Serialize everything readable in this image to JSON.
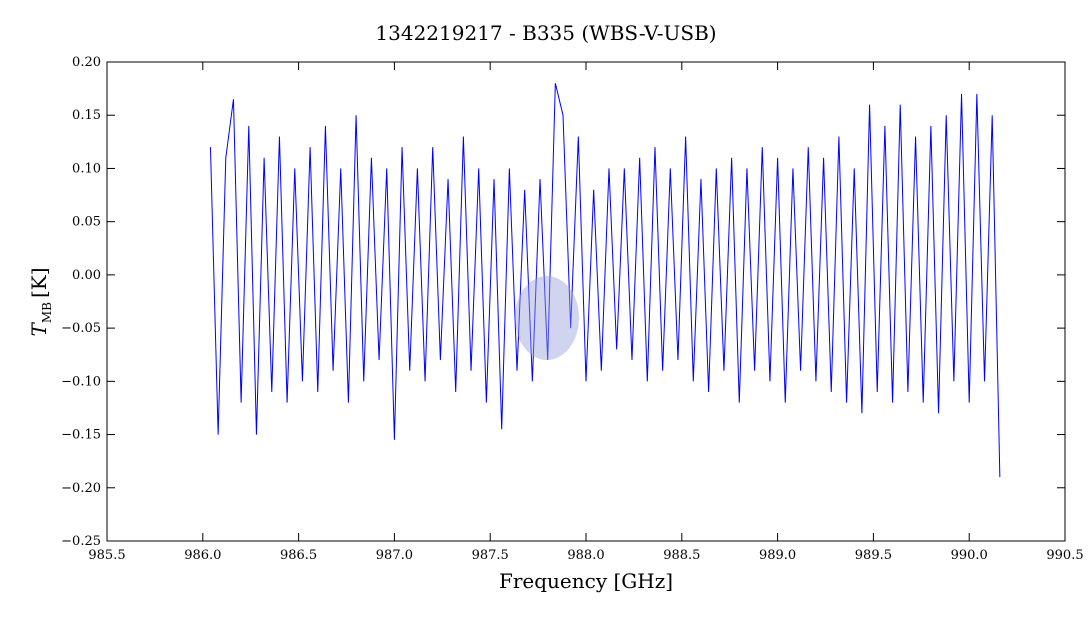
{
  "chart_data": {
    "type": "line",
    "title": "1342219217 - B335 (WBS-V-USB)",
    "xlabel": "Frequency [GHz]",
    "ylabel_symbol": "T",
    "ylabel_subscript": "MB",
    "ylabel_unit": "[K]",
    "xlim": [
      985.5,
      990.5
    ],
    "xticks": [
      985.5,
      {
        "value": 986,
        "label": "986.0"
      },
      986.5,
      {
        "value": 987,
        "label": "987.0"
      },
      987.5,
      {
        "value": 988,
        "label": "988.0"
      },
      988.5,
      {
        "value": 989,
        "label": "989.0"
      },
      989.5,
      {
        "value": 990,
        "label": "990.0"
      },
      990.5
    ],
    "ylim": [
      -0.25,
      0.2
    ],
    "yticks": [
      {
        "value": -0.25,
        "label": "−0.25"
      },
      {
        "value": -0.2,
        "label": "−0.20"
      },
      {
        "value": -0.15,
        "label": "−0.15"
      },
      {
        "value": -0.1,
        "label": "−0.10"
      },
      {
        "value": -0.05,
        "label": "−0.05"
      },
      {
        "value": 0,
        "label": "0.00"
      },
      {
        "value": 0.05,
        "label": "0.05"
      },
      {
        "value": 0.1,
        "label": "0.10"
      },
      {
        "value": 0.15,
        "label": "0.15"
      },
      {
        "value": 0.2,
        "label": "0.20"
      }
    ],
    "series": [
      {
        "color": "#0000ff",
        "x": [
          986.04,
          986.08,
          986.12,
          986.16,
          986.2,
          986.24,
          986.28,
          986.32,
          986.36,
          986.4,
          986.44,
          986.48,
          986.52,
          986.56,
          986.6,
          986.64,
          986.68,
          986.72,
          986.76,
          986.8,
          986.84,
          986.88,
          986.92,
          986.96,
          987.0,
          987.04,
          987.08,
          987.12,
          987.16,
          987.2,
          987.24,
          987.28,
          987.32,
          987.36,
          987.4,
          987.44,
          987.48,
          987.52,
          987.56,
          987.6,
          987.64,
          987.68,
          987.72,
          987.76,
          987.8,
          987.84,
          987.88,
          987.92,
          987.96,
          988.0,
          988.04,
          988.08,
          988.12,
          988.16,
          988.2,
          988.24,
          988.28,
          988.32,
          988.36,
          988.4,
          988.44,
          988.48,
          988.52,
          988.56,
          988.6,
          988.64,
          988.68,
          988.72,
          988.76,
          988.8,
          988.84,
          988.88,
          988.92,
          988.96,
          989.0,
          989.04,
          989.08,
          989.12,
          989.16,
          989.2,
          989.24,
          989.28,
          989.32,
          989.36,
          989.4,
          989.44,
          989.48,
          989.52,
          989.56,
          989.6,
          989.64,
          989.68,
          989.72,
          989.76,
          989.8,
          989.84,
          989.88,
          989.92,
          989.96,
          990.0,
          990.04,
          990.08,
          990.12,
          990.16
        ],
        "values": [
          0.12,
          -0.15,
          0.11,
          0.165,
          -0.12,
          0.14,
          -0.15,
          0.11,
          -0.11,
          0.13,
          -0.12,
          0.1,
          -0.1,
          0.12,
          -0.11,
          0.14,
          -0.09,
          0.1,
          -0.12,
          0.15,
          -0.1,
          0.11,
          -0.08,
          0.1,
          -0.155,
          0.12,
          -0.09,
          0.1,
          -0.1,
          0.12,
          -0.08,
          0.09,
          -0.11,
          0.13,
          -0.09,
          0.1,
          -0.12,
          0.09,
          -0.145,
          0.1,
          -0.09,
          0.08,
          -0.1,
          0.09,
          -0.08,
          0.18,
          0.15,
          -0.05,
          0.13,
          -0.1,
          0.08,
          -0.09,
          0.1,
          -0.07,
          0.1,
          -0.08,
          0.11,
          -0.1,
          0.12,
          -0.09,
          0.1,
          -0.08,
          0.13,
          -0.1,
          0.09,
          -0.11,
          0.1,
          -0.09,
          0.11,
          -0.12,
          0.1,
          -0.09,
          0.12,
          -0.1,
          0.11,
          -0.12,
          0.1,
          -0.09,
          0.12,
          -0.1,
          0.11,
          -0.11,
          0.13,
          -0.12,
          0.1,
          -0.13,
          0.16,
          -0.11,
          0.14,
          -0.12,
          0.16,
          -0.11,
          0.13,
          -0.12,
          0.14,
          -0.13,
          0.15,
          -0.1,
          0.17,
          -0.12,
          0.17,
          -0.1,
          0.15,
          -0.19
        ]
      }
    ]
  }
}
